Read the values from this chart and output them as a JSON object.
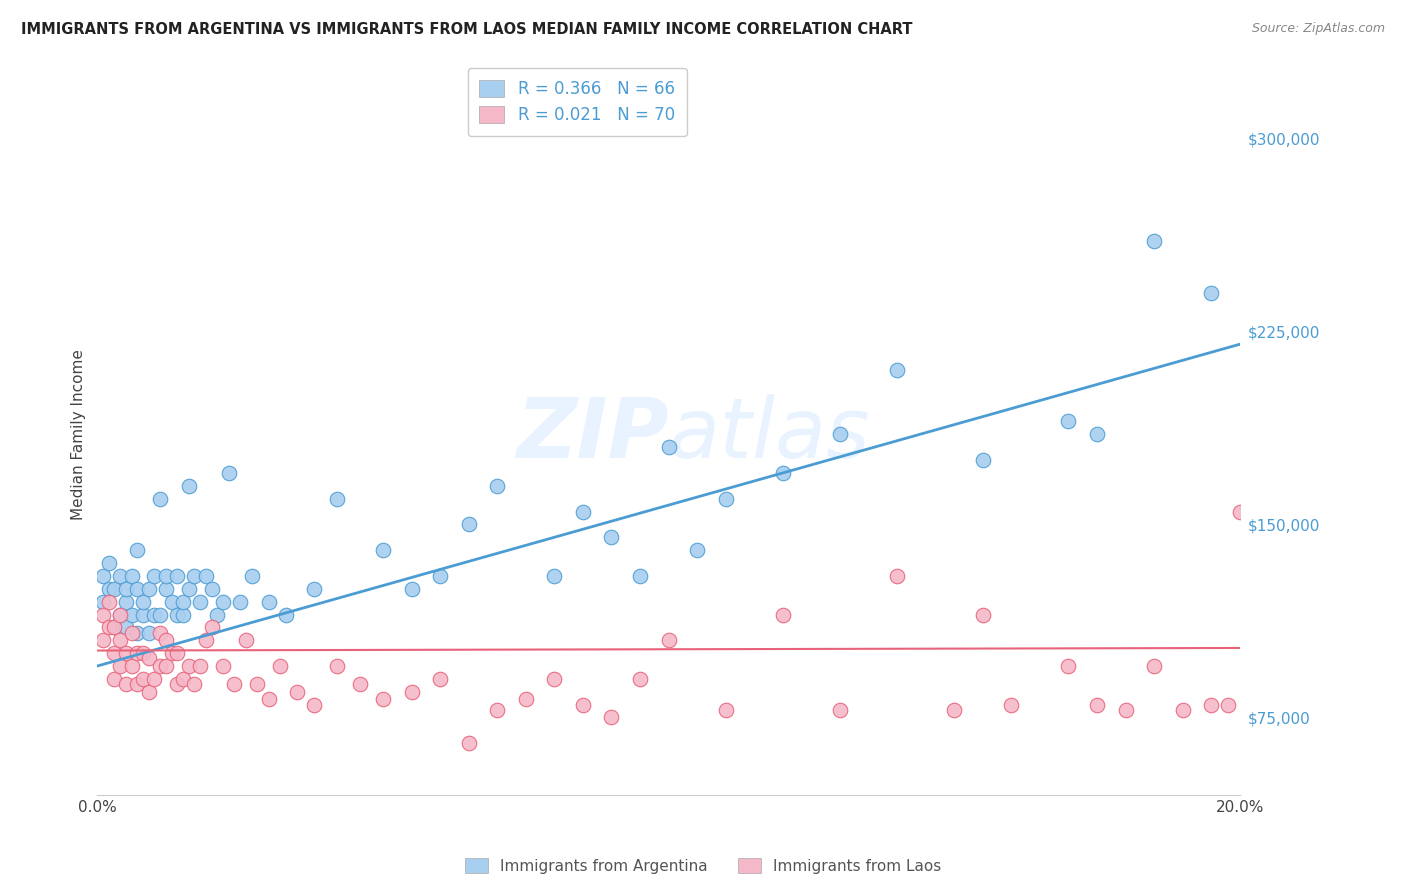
{
  "title": "IMMIGRANTS FROM ARGENTINA VS IMMIGRANTS FROM LAOS MEDIAN FAMILY INCOME CORRELATION CHART",
  "source": "Source: ZipAtlas.com",
  "ylabel": "Median Family Income",
  "xlim": [
    0.0,
    0.2
  ],
  "ylim": [
    45000,
    325000
  ],
  "yticks": [
    75000,
    150000,
    225000,
    300000
  ],
  "ytick_labels": [
    "$75,000",
    "$150,000",
    "$225,000",
    "$300,000"
  ],
  "xticks": [
    0.0,
    0.05,
    0.1,
    0.15,
    0.2
  ],
  "xtick_labels": [
    "0.0%",
    "",
    "",
    "",
    "20.0%"
  ],
  "argentina_color": "#A8CEF0",
  "laos_color": "#F5B8C8",
  "argentina_line_color": "#4B9CD3",
  "laos_line_color": "#E8637A",
  "argentina_R": 0.366,
  "argentina_N": 66,
  "laos_R": 0.021,
  "laos_N": 70,
  "watermark": "ZIPatlas",
  "argentina_x": [
    0.001,
    0.001,
    0.002,
    0.002,
    0.003,
    0.003,
    0.004,
    0.004,
    0.005,
    0.005,
    0.005,
    0.006,
    0.006,
    0.007,
    0.007,
    0.007,
    0.008,
    0.008,
    0.009,
    0.009,
    0.01,
    0.01,
    0.011,
    0.011,
    0.012,
    0.012,
    0.013,
    0.014,
    0.014,
    0.015,
    0.015,
    0.016,
    0.016,
    0.017,
    0.018,
    0.019,
    0.02,
    0.021,
    0.022,
    0.023,
    0.025,
    0.027,
    0.03,
    0.033,
    0.038,
    0.042,
    0.05,
    0.055,
    0.06,
    0.065,
    0.07,
    0.08,
    0.085,
    0.09,
    0.095,
    0.1,
    0.105,
    0.11,
    0.12,
    0.13,
    0.14,
    0.155,
    0.17,
    0.175,
    0.185,
    0.195
  ],
  "argentina_y": [
    130000,
    120000,
    125000,
    135000,
    110000,
    125000,
    115000,
    130000,
    120000,
    110000,
    125000,
    115000,
    130000,
    108000,
    125000,
    140000,
    115000,
    120000,
    108000,
    125000,
    115000,
    130000,
    115000,
    160000,
    125000,
    130000,
    120000,
    115000,
    130000,
    115000,
    120000,
    125000,
    165000,
    130000,
    120000,
    130000,
    125000,
    115000,
    120000,
    170000,
    120000,
    130000,
    120000,
    115000,
    125000,
    160000,
    140000,
    125000,
    130000,
    150000,
    165000,
    130000,
    155000,
    145000,
    130000,
    180000,
    140000,
    160000,
    170000,
    185000,
    210000,
    175000,
    190000,
    185000,
    260000,
    240000
  ],
  "laos_x": [
    0.001,
    0.001,
    0.002,
    0.002,
    0.003,
    0.003,
    0.003,
    0.004,
    0.004,
    0.004,
    0.005,
    0.005,
    0.006,
    0.006,
    0.007,
    0.007,
    0.008,
    0.008,
    0.009,
    0.009,
    0.01,
    0.011,
    0.011,
    0.012,
    0.012,
    0.013,
    0.014,
    0.014,
    0.015,
    0.016,
    0.017,
    0.018,
    0.019,
    0.02,
    0.022,
    0.024,
    0.026,
    0.028,
    0.03,
    0.032,
    0.035,
    0.038,
    0.042,
    0.046,
    0.05,
    0.055,
    0.06,
    0.065,
    0.07,
    0.075,
    0.08,
    0.085,
    0.09,
    0.095,
    0.1,
    0.11,
    0.12,
    0.13,
    0.14,
    0.15,
    0.155,
    0.16,
    0.17,
    0.175,
    0.18,
    0.185,
    0.19,
    0.195,
    0.198,
    0.2
  ],
  "laos_y": [
    115000,
    105000,
    110000,
    120000,
    100000,
    110000,
    90000,
    95000,
    105000,
    115000,
    88000,
    100000,
    95000,
    108000,
    88000,
    100000,
    90000,
    100000,
    85000,
    98000,
    90000,
    95000,
    108000,
    105000,
    95000,
    100000,
    88000,
    100000,
    90000,
    95000,
    88000,
    95000,
    105000,
    110000,
    95000,
    88000,
    105000,
    88000,
    82000,
    95000,
    85000,
    80000,
    95000,
    88000,
    82000,
    85000,
    90000,
    65000,
    78000,
    82000,
    90000,
    80000,
    75000,
    90000,
    105000,
    78000,
    115000,
    78000,
    130000,
    78000,
    115000,
    80000,
    95000,
    80000,
    78000,
    95000,
    78000,
    80000,
    80000,
    155000
  ]
}
